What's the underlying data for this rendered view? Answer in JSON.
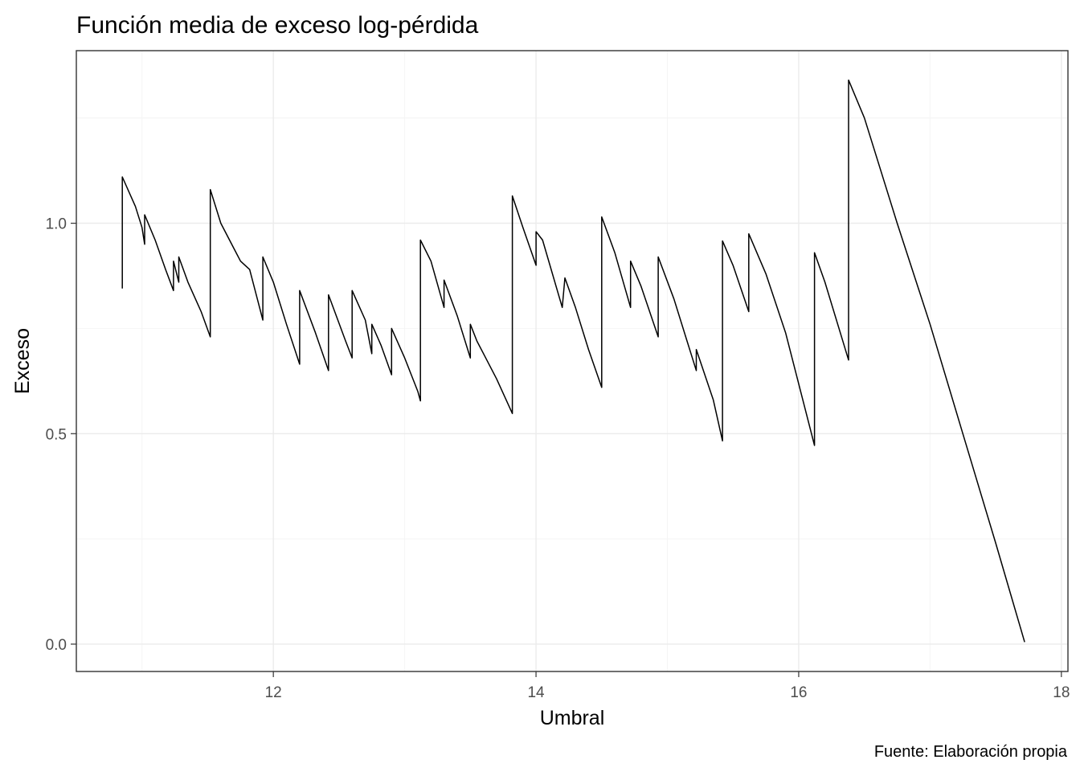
{
  "chart_data": {
    "type": "line",
    "title": "Función media de exceso log-pérdida",
    "xlabel": "Umbral",
    "ylabel": "Exceso",
    "caption": "Fuente: Elaboración propia",
    "xlim": [
      10.5,
      18.05
    ],
    "ylim": [
      -0.065,
      1.41
    ],
    "x_ticks": [
      12,
      14,
      16,
      18
    ],
    "y_ticks": [
      0.0,
      0.5,
      1.0
    ],
    "x_tick_labels": [
      "12",
      "14",
      "16",
      "18"
    ],
    "y_tick_labels": [
      "0.0",
      "0.5",
      "1.0"
    ],
    "grid": true,
    "legend": "none",
    "series": [
      {
        "points": [
          [
            10.85,
            0.845
          ],
          [
            10.85,
            1.11
          ],
          [
            10.95,
            1.04
          ],
          [
            11.0,
            0.99
          ],
          [
            11.02,
            0.95
          ],
          [
            11.02,
            1.02
          ],
          [
            11.1,
            0.96
          ],
          [
            11.18,
            0.89
          ],
          [
            11.24,
            0.84
          ],
          [
            11.24,
            0.91
          ],
          [
            11.28,
            0.86
          ],
          [
            11.28,
            0.92
          ],
          [
            11.35,
            0.86
          ],
          [
            11.45,
            0.79
          ],
          [
            11.52,
            0.73
          ],
          [
            11.52,
            1.08
          ],
          [
            11.6,
            1.0
          ],
          [
            11.7,
            0.94
          ],
          [
            11.75,
            0.91
          ],
          [
            11.82,
            0.89
          ],
          [
            11.92,
            0.77
          ],
          [
            11.92,
            0.92
          ],
          [
            12.0,
            0.86
          ],
          [
            12.1,
            0.76
          ],
          [
            12.2,
            0.665
          ],
          [
            12.2,
            0.84
          ],
          [
            12.32,
            0.74
          ],
          [
            12.42,
            0.65
          ],
          [
            12.42,
            0.83
          ],
          [
            12.55,
            0.72
          ],
          [
            12.6,
            0.68
          ],
          [
            12.6,
            0.84
          ],
          [
            12.7,
            0.77
          ],
          [
            12.75,
            0.69
          ],
          [
            12.75,
            0.76
          ],
          [
            12.82,
            0.71
          ],
          [
            12.9,
            0.64
          ],
          [
            12.9,
            0.75
          ],
          [
            13.0,
            0.68
          ],
          [
            13.05,
            0.64
          ],
          [
            13.1,
            0.6
          ],
          [
            13.12,
            0.578
          ],
          [
            13.12,
            0.96
          ],
          [
            13.2,
            0.91
          ],
          [
            13.3,
            0.8
          ],
          [
            13.3,
            0.865
          ],
          [
            13.4,
            0.78
          ],
          [
            13.5,
            0.68
          ],
          [
            13.5,
            0.76
          ],
          [
            13.55,
            0.72
          ],
          [
            13.6,
            0.69
          ],
          [
            13.7,
            0.63
          ],
          [
            13.82,
            0.548
          ],
          [
            13.82,
            1.065
          ],
          [
            13.9,
            0.99
          ],
          [
            14.0,
            0.9
          ],
          [
            14.0,
            0.98
          ],
          [
            14.05,
            0.96
          ],
          [
            14.2,
            0.8
          ],
          [
            14.22,
            0.87
          ],
          [
            14.3,
            0.8
          ],
          [
            14.4,
            0.7
          ],
          [
            14.5,
            0.61
          ],
          [
            14.5,
            1.015
          ],
          [
            14.6,
            0.93
          ],
          [
            14.72,
            0.8
          ],
          [
            14.72,
            0.91
          ],
          [
            14.8,
            0.85
          ],
          [
            14.93,
            0.73
          ],
          [
            14.93,
            0.92
          ],
          [
            15.05,
            0.82
          ],
          [
            15.15,
            0.72
          ],
          [
            15.22,
            0.65
          ],
          [
            15.22,
            0.7
          ],
          [
            15.35,
            0.58
          ],
          [
            15.42,
            0.483
          ],
          [
            15.42,
            0.958
          ],
          [
            15.5,
            0.9
          ],
          [
            15.62,
            0.79
          ],
          [
            15.62,
            0.975
          ],
          [
            15.75,
            0.88
          ],
          [
            15.9,
            0.74
          ],
          [
            16.12,
            0.472
          ],
          [
            16.12,
            0.93
          ],
          [
            16.2,
            0.86
          ],
          [
            16.38,
            0.675
          ],
          [
            16.38,
            1.34
          ],
          [
            16.5,
            1.25
          ],
          [
            16.75,
            1.0
          ],
          [
            17.0,
            0.76
          ],
          [
            17.25,
            0.5
          ],
          [
            17.5,
            0.24
          ],
          [
            17.72,
            0.005
          ]
        ]
      }
    ]
  }
}
